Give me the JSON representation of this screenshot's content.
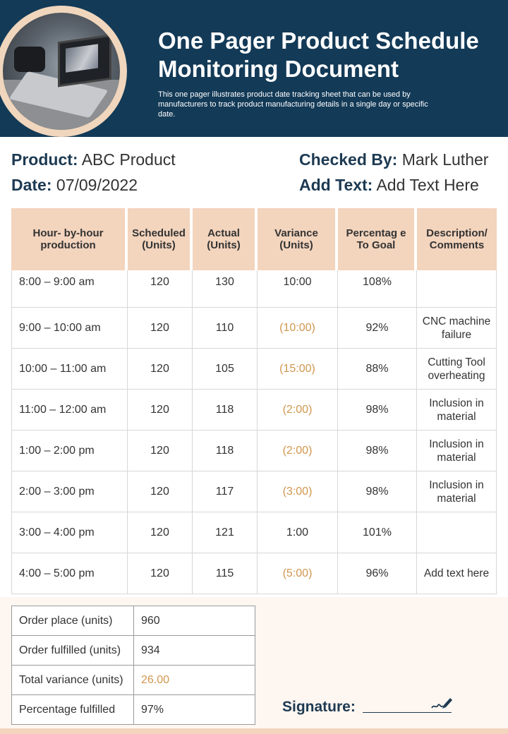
{
  "header": {
    "title": "One Pager Product Schedule Monitoring Document",
    "subtitle": "This one pager illustrates product date tracking sheet that can be used by manufacturers to track product manufacturing details in a single day or specific date."
  },
  "info": {
    "product_label": "Product:",
    "product_value": "ABC Product",
    "date_label": "Date:",
    "date_value": "07/09/2022",
    "checked_label": "Checked By:",
    "checked_value": "Mark Luther",
    "add_label": "Add Text:",
    "add_value": "Add Text Here"
  },
  "table": {
    "headers": [
      "Hour- by-hour production",
      "Scheduled (Units)",
      "Actual (Units)",
      "Variance (Units)",
      "Percentag e To Goal",
      "Description/ Comments"
    ],
    "rows": [
      {
        "hour": "8:00 – 9:00 am",
        "scheduled": "120",
        "actual": "130",
        "variance": "10:00",
        "percent": "108%",
        "desc": ""
      },
      {
        "hour": "9:00 – 10:00 am",
        "scheduled": "120",
        "actual": "110",
        "variance": "(10:00)",
        "percent": "92%",
        "desc": "CNC machine failure"
      },
      {
        "hour": "10:00 – 11:00 am",
        "scheduled": "120",
        "actual": "105",
        "variance": "(15:00)",
        "percent": "88%",
        "desc": "Cutting Tool overheating"
      },
      {
        "hour": "11:00 – 12:00 am",
        "scheduled": "120",
        "actual": "118",
        "variance": "(2:00)",
        "percent": "98%",
        "desc": "Inclusion in material"
      },
      {
        "hour": "1:00 – 2:00 pm",
        "scheduled": "120",
        "actual": "118",
        "variance": "(2:00)",
        "percent": "98%",
        "desc": "Inclusion in material"
      },
      {
        "hour": "2:00 – 3:00 pm",
        "scheduled": "120",
        "actual": "117",
        "variance": "(3:00)",
        "percent": "98%",
        "desc": "Inclusion in material"
      },
      {
        "hour": "3:00 – 4:00 pm",
        "scheduled": "120",
        "actual": "121",
        "variance": "1:00",
        "percent": "101%",
        "desc": ""
      },
      {
        "hour": "4:00 – 5:00 pm",
        "scheduled": "120",
        "actual": "115",
        "variance": "(5:00)",
        "percent": "96%",
        "desc": "Add text here"
      }
    ]
  },
  "summary": [
    {
      "label": "Order place (units)",
      "value": "960"
    },
    {
      "label": "Order fulfilled (units)",
      "value": "934"
    },
    {
      "label": "Total variance (units)",
      "value": "26.00"
    },
    {
      "label": "Percentage fulfilled",
      "value": "97%"
    }
  ],
  "signature": {
    "label": "Signature:",
    "icon": "pen-signature-icon"
  },
  "colors": {
    "header_bg": "#133a57",
    "accent_peach": "#f3d4bd",
    "negative": "#d1964e"
  }
}
